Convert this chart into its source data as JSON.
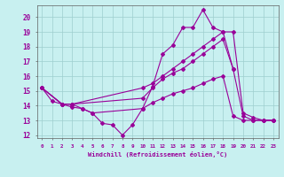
{
  "background_color": "#c8f0f0",
  "grid_color": "#9ecece",
  "line_color": "#990099",
  "xlabel": "Windchill (Refroidissement éolien,°C)",
  "xlim": [
    -0.5,
    23.5
  ],
  "ylim": [
    11.8,
    20.8
  ],
  "yticks": [
    12,
    13,
    14,
    15,
    16,
    17,
    18,
    19,
    20
  ],
  "xticks": [
    0,
    1,
    2,
    3,
    4,
    5,
    6,
    7,
    8,
    9,
    10,
    11,
    12,
    13,
    14,
    15,
    16,
    17,
    18,
    19,
    20,
    21,
    22,
    23
  ],
  "lines": [
    {
      "x": [
        0,
        1,
        2,
        3,
        4,
        5,
        6,
        7,
        8,
        9,
        10,
        11,
        12,
        13,
        14,
        15,
        16,
        17,
        18,
        19
      ],
      "y": [
        15.2,
        14.3,
        14.1,
        13.9,
        13.8,
        13.5,
        12.8,
        12.7,
        12.0,
        12.7,
        13.8,
        15.3,
        17.5,
        18.1,
        19.3,
        19.3,
        20.5,
        19.3,
        19.0,
        16.5
      ]
    },
    {
      "x": [
        0,
        2,
        3,
        10,
        11,
        12,
        13,
        14,
        15,
        16,
        17,
        18,
        19,
        20,
        21,
        22,
        23
      ],
      "y": [
        15.2,
        14.1,
        14.1,
        15.2,
        15.5,
        16.0,
        16.5,
        17.0,
        17.5,
        18.0,
        18.5,
        19.0,
        19.0,
        13.5,
        13.2,
        13.0,
        13.0
      ]
    },
    {
      "x": [
        0,
        2,
        3,
        10,
        11,
        12,
        13,
        14,
        15,
        16,
        17,
        18,
        19,
        20,
        21,
        22,
        23
      ],
      "y": [
        15.2,
        14.1,
        14.1,
        14.5,
        15.2,
        15.8,
        16.2,
        16.5,
        17.0,
        17.5,
        18.0,
        18.5,
        16.5,
        13.3,
        13.0,
        13.0,
        13.0
      ]
    },
    {
      "x": [
        0,
        2,
        3,
        4,
        5,
        10,
        11,
        12,
        13,
        14,
        15,
        16,
        17,
        18,
        19,
        20,
        21,
        22,
        23
      ],
      "y": [
        15.2,
        14.1,
        14.1,
        13.8,
        13.5,
        13.8,
        14.2,
        14.5,
        14.8,
        15.0,
        15.2,
        15.5,
        15.8,
        16.0,
        13.3,
        13.0,
        13.0,
        13.0,
        13.0
      ]
    }
  ]
}
